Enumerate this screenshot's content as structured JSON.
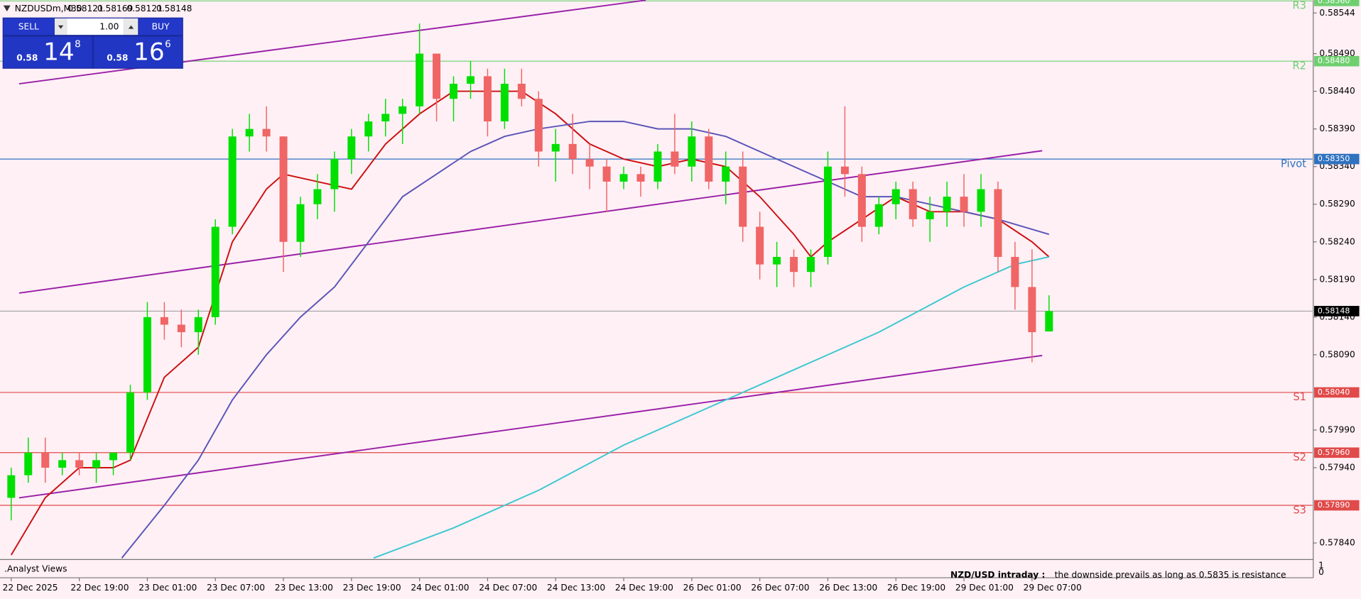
{
  "chart_data": {
    "type": "candlestick",
    "symbol": "NZDUSDm,M30",
    "open": [
      0.579,
      0.5793,
      0.5796,
      0.5794,
      0.5795,
      0.5794,
      0.5795,
      0.5796,
      0.5804,
      0.5814,
      0.5813,
      0.5812,
      0.5814,
      0.5826,
      0.5838,
      0.5839,
      0.5838,
      0.5824,
      0.5829,
      0.5831,
      0.5835,
      0.5838,
      0.584,
      0.5841,
      0.5842,
      0.5849,
      0.5843,
      0.5845,
      0.5846,
      0.584,
      0.5845,
      0.5843,
      0.5836,
      0.5837,
      0.5835,
      0.5834,
      0.5832,
      0.5833,
      0.5832,
      0.5836,
      0.5834,
      0.5838,
      0.5832,
      0.5834,
      0.5826,
      0.5821,
      0.5822,
      0.582,
      0.5822,
      0.5834,
      0.5833,
      0.5826,
      0.5829,
      0.5831,
      0.5827,
      0.5828,
      0.583,
      0.5828,
      0.5831,
      0.5822,
      0.5818,
      0.58121
    ],
    "high": [
      0.5794,
      0.5798,
      0.5798,
      0.5796,
      0.5796,
      0.5796,
      0.5796,
      0.5805,
      0.5816,
      0.5816,
      0.5815,
      0.5815,
      0.5827,
      0.5839,
      0.5841,
      0.5842,
      0.5838,
      0.583,
      0.5833,
      0.5836,
      0.5839,
      0.5841,
      0.5843,
      0.5843,
      0.5853,
      0.5849,
      0.5846,
      0.5848,
      0.5847,
      0.5847,
      0.5847,
      0.5844,
      0.5839,
      0.5841,
      0.5837,
      0.5835,
      0.5834,
      0.5834,
      0.5837,
      0.5841,
      0.584,
      0.5839,
      0.5836,
      0.5836,
      0.5828,
      0.5824,
      0.5823,
      0.5823,
      0.5836,
      0.5842,
      0.5834,
      0.583,
      0.5832,
      0.5832,
      0.583,
      0.5832,
      0.5833,
      0.5833,
      0.5832,
      0.5824,
      0.5823,
      0.58169
    ],
    "low": [
      0.5787,
      0.5792,
      0.5792,
      0.5793,
      0.5793,
      0.5792,
      0.5793,
      0.5795,
      0.5803,
      0.5811,
      0.581,
      0.5809,
      0.5813,
      0.5825,
      0.5836,
      0.5836,
      0.582,
      0.5822,
      0.5827,
      0.5828,
      0.5833,
      0.5836,
      0.5838,
      0.5837,
      0.5841,
      0.584,
      0.584,
      0.5843,
      0.5838,
      0.5839,
      0.5842,
      0.5834,
      0.5832,
      0.5833,
      0.5831,
      0.5828,
      0.5831,
      0.583,
      0.5831,
      0.5833,
      0.5832,
      0.5831,
      0.5829,
      0.5824,
      0.5819,
      0.5818,
      0.5818,
      0.5818,
      0.5821,
      0.583,
      0.5824,
      0.5825,
      0.5827,
      0.5826,
      0.5824,
      0.5826,
      0.5826,
      0.5826,
      0.582,
      0.5815,
      0.5808,
      0.58121
    ],
    "close": [
      0.5793,
      0.5796,
      0.5794,
      0.5795,
      0.5794,
      0.5795,
      0.5796,
      0.5804,
      0.5814,
      0.5813,
      0.5812,
      0.5814,
      0.5826,
      0.5838,
      0.5839,
      0.5838,
      0.5824,
      0.5829,
      0.5831,
      0.5835,
      0.5838,
      0.584,
      0.5841,
      0.5842,
      0.5849,
      0.5843,
      0.5845,
      0.5846,
      0.584,
      0.5845,
      0.5843,
      0.5836,
      0.5837,
      0.5835,
      0.5834,
      0.5832,
      0.5833,
      0.5832,
      0.5836,
      0.5834,
      0.5838,
      0.5832,
      0.5834,
      0.5826,
      0.5821,
      0.5822,
      0.582,
      0.5822,
      0.5834,
      0.5833,
      0.5826,
      0.5829,
      0.5831,
      0.5827,
      0.5828,
      0.583,
      0.5828,
      0.5831,
      0.5822,
      0.5818,
      0.5812,
      0.58148
    ],
    "up_color": "#00e000",
    "down_color": "#f06565",
    "xlim": [
      -0.66,
      76.48
    ],
    "xticks": [
      {
        "value": 0,
        "label": "22 Dec 2025"
      },
      {
        "value": 4,
        "label": "22 Dec 19:00"
      },
      {
        "value": 8,
        "label": "23 Dec 01:00"
      },
      {
        "value": 12,
        "label": "23 Dec 07:00"
      },
      {
        "value": 16,
        "label": "23 Dec 13:00"
      },
      {
        "value": 20,
        "label": "23 Dec 19:00"
      },
      {
        "value": 24,
        "label": "24 Dec 01:00"
      },
      {
        "value": 28,
        "label": "24 Dec 07:00"
      },
      {
        "value": 32,
        "label": "24 Dec 13:00"
      },
      {
        "value": 36,
        "label": "24 Dec 19:00"
      },
      {
        "value": 40,
        "label": "26 Dec 01:00"
      },
      {
        "value": 44,
        "label": "26 Dec 07:00"
      },
      {
        "value": 48,
        "label": "26 Dec 13:00"
      },
      {
        "value": 52,
        "label": "26 Dec 19:00"
      },
      {
        "value": 56,
        "label": "29 Dec 01:00"
      },
      {
        "value": 60,
        "label": "29 Dec 07:00"
      }
    ],
    "ylim": [
      0.57818,
      0.58561
    ],
    "yticks": [
      0.58544,
      {
        "value": 0.5849,
        "label": "0.58490"
      },
      {
        "value": 0.5844,
        "label": "0.58440"
      },
      {
        "value": 0.5839,
        "label": "0.58390"
      },
      {
        "value": 0.5834,
        "label": "0.58340"
      },
      {
        "value": 0.5829,
        "label": "0.58290"
      },
      {
        "value": 0.5824,
        "label": "0.58240"
      },
      {
        "value": 0.5819,
        "label": "0.58190"
      },
      {
        "value": 0.5814,
        "label": "0.58140"
      },
      {
        "value": 0.5809,
        "label": "0.58090"
      },
      {
        "value": 0.5799,
        "label": "0.57990"
      },
      {
        "value": 0.5794,
        "label": "0.57940"
      },
      {
        "value": 0.5784,
        "label": "0.57840"
      }
    ],
    "moving_averages": [
      {
        "color": "#cc1010",
        "x": [
          0,
          2,
          4,
          6,
          7,
          9,
          11,
          13,
          15,
          16,
          18,
          20,
          22,
          24,
          26,
          28,
          30,
          32,
          34,
          36,
          38,
          40,
          42,
          44,
          46,
          47,
          48,
          50,
          52,
          54,
          56,
          58,
          60,
          61
        ],
        "values": [
          0.57824,
          0.579,
          0.5794,
          0.5794,
          0.5795,
          0.5806,
          0.581,
          0.5824,
          0.5831,
          0.5833,
          0.5832,
          0.5831,
          0.5837,
          0.5841,
          0.5844,
          0.5844,
          0.5844,
          0.5841,
          0.5837,
          0.5835,
          0.5834,
          0.5835,
          0.5834,
          0.583,
          0.5825,
          0.5822,
          0.5824,
          0.5827,
          0.583,
          0.5828,
          0.5828,
          0.5827,
          0.5824,
          0.5822
        ]
      },
      {
        "color": "#5a55b8",
        "x": [
          6.5,
          9,
          11,
          13,
          15,
          17,
          19,
          21,
          23,
          25,
          27,
          29,
          31,
          34,
          36,
          38,
          40,
          42,
          44,
          46,
          48,
          50,
          52,
          54,
          56,
          58,
          61
        ],
        "values": [
          0.5782,
          0.5789,
          0.5795,
          0.5803,
          0.5809,
          0.5814,
          0.5818,
          0.5824,
          0.583,
          0.5833,
          0.5836,
          0.5838,
          0.5839,
          0.584,
          0.584,
          0.5839,
          0.5839,
          0.5838,
          0.5836,
          0.5834,
          0.5832,
          0.583,
          0.583,
          0.5829,
          0.5828,
          0.5827,
          0.5825
        ]
      },
      {
        "color": "#3cc8d0",
        "x": [
          21.3,
          26,
          31,
          36,
          41,
          46,
          51,
          56,
          59,
          61
        ],
        "values": [
          0.5782,
          0.5786,
          0.5791,
          0.5797,
          0.5802,
          0.5807,
          0.5812,
          0.5818,
          0.5821,
          0.5822
        ]
      }
    ],
    "trendlines": [
      {
        "color": "#9a20a8",
        "x": [
          0.46,
          37.3
        ],
        "values": [
          0.5845,
          0.58561
        ]
      },
      {
        "color": "#9a20a8",
        "x": [
          0.46,
          60.6
        ],
        "values": [
          0.58172,
          0.58361
        ]
      },
      {
        "color": "#9a20a8",
        "x": [
          0.46,
          60.6
        ],
        "values": [
          0.579,
          0.58089
        ]
      }
    ],
    "levels": [
      {
        "name": "R3",
        "value": 0.5856,
        "label": "0.58560",
        "color": "#6fcf6f"
      },
      {
        "name": "R2",
        "value": 0.5848,
        "label": "0.58480",
        "color": "#6fcf6f"
      },
      {
        "name": "Pivot",
        "value": 0.5835,
        "label": "0.58350",
        "color": "#2f72c0"
      },
      {
        "name": "S1",
        "value": 0.5804,
        "label": "0.58040",
        "color": "#e04a4a"
      },
      {
        "name": "S2",
        "value": 0.5796,
        "label": "0.57960",
        "color": "#e04a4a"
      },
      {
        "name": "S3",
        "value": 0.5789,
        "label": "0.57890",
        "color": "#e04a4a"
      }
    ],
    "indicator": {
      "name": ".Analyst Views",
      "yticks": [
        1,
        0
      ]
    },
    "annotation": {
      "title": "NZD/USD intraday :",
      "text": "the downside prevails as long as 0.5835 is resistance"
    }
  },
  "trade_panel": {
    "sell": "SELL",
    "buy": "BUY",
    "volume": "1.00",
    "bid": {
      "big": "0.58",
      "pips": "14",
      "point": "8"
    },
    "ask": {
      "big": "0.58",
      "pips": "16",
      "point": "6"
    }
  }
}
